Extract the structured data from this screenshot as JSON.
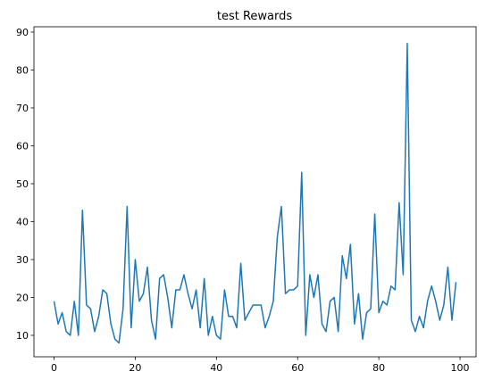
{
  "chart_data": {
    "type": "line",
    "title": "test Rewards",
    "x": [
      0,
      1,
      2,
      3,
      4,
      5,
      6,
      7,
      8,
      9,
      10,
      11,
      12,
      13,
      14,
      15,
      16,
      17,
      18,
      19,
      20,
      21,
      22,
      23,
      24,
      25,
      26,
      27,
      28,
      29,
      30,
      31,
      32,
      33,
      34,
      35,
      36,
      37,
      38,
      39,
      40,
      41,
      42,
      43,
      44,
      45,
      46,
      47,
      48,
      49,
      50,
      51,
      52,
      53,
      54,
      55,
      56,
      57,
      58,
      59,
      60,
      61,
      62,
      63,
      64,
      65,
      66,
      67,
      68,
      69,
      70,
      71,
      72,
      73,
      74,
      75,
      76,
      77,
      78,
      79,
      80,
      81,
      82,
      83,
      84,
      85,
      86,
      87,
      88,
      89,
      90,
      91,
      92,
      93,
      94,
      95,
      96,
      97,
      98,
      99
    ],
    "series": [
      {
        "color": "#1f77b4",
        "values": [
          19,
          13,
          16,
          11,
          10,
          19,
          10,
          43,
          18,
          17,
          11,
          15,
          22,
          21,
          13,
          9,
          8,
          17,
          44,
          12,
          30,
          19,
          21,
          28,
          14,
          9,
          25,
          26,
          20,
          12,
          22,
          22,
          26,
          21,
          17,
          22,
          12,
          25,
          10,
          15,
          10,
          9,
          22,
          15,
          15,
          12,
          29,
          14,
          16,
          18,
          18,
          18,
          12,
          15,
          19,
          36,
          44,
          21,
          22,
          22,
          23,
          53,
          10,
          26,
          20,
          26,
          13,
          11,
          19,
          20,
          11,
          31,
          25,
          34,
          13,
          21,
          9,
          16,
          17,
          42,
          16,
          19,
          18,
          23,
          22,
          45,
          26,
          87,
          14,
          11,
          15,
          12,
          19,
          23,
          19,
          14,
          18,
          28,
          14,
          24
        ]
      }
    ],
    "xlim": [
      -4.95,
      103.95
    ],
    "ylim": [
      4.35,
      91.4
    ],
    "xticks": [
      0,
      20,
      40,
      60,
      80,
      100
    ],
    "yticks": [
      10,
      20,
      30,
      40,
      50,
      60,
      70,
      80,
      90
    ]
  }
}
